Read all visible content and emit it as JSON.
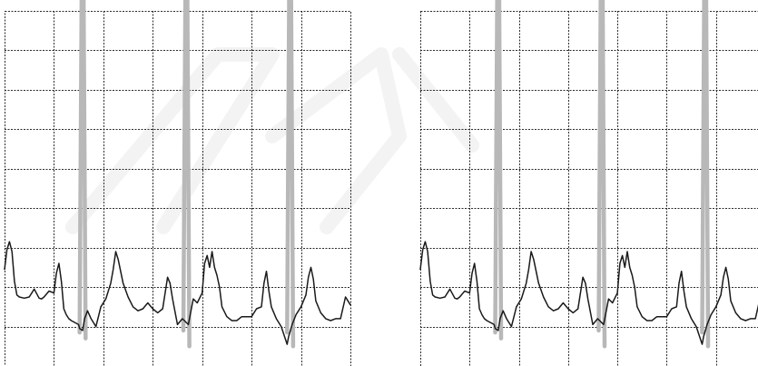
{
  "chart_data": [
    {
      "type": "line",
      "panel": "left",
      "title": "",
      "xlabel": "",
      "ylabel": "",
      "grid": true,
      "xlim": [
        0,
        7
      ],
      "ylim": [
        0,
        9
      ],
      "series": [
        {
          "color": "#1a1a1a",
          "x": [
            0,
            0.05,
            0.1,
            0.15,
            0.2,
            0.25,
            0.3,
            0.4,
            0.5,
            0.6,
            0.7,
            0.75,
            0.8,
            0.9,
            1.0,
            1.05,
            1.1,
            1.15,
            1.2,
            1.25,
            1.3,
            1.35,
            1.5,
            1.52,
            1.58,
            1.62,
            1.68,
            1.75,
            1.85,
            1.95,
            2.05,
            2.15,
            2.2,
            2.25,
            2.3,
            2.4,
            2.5,
            2.6,
            2.7,
            2.8,
            2.9,
            3.0,
            3.1,
            3.2,
            3.25,
            3.3,
            3.35,
            3.4,
            3.5,
            3.6,
            3.72,
            3.75,
            3.82,
            3.9,
            4.0,
            4.05,
            4.1,
            4.15,
            4.2,
            4.25,
            4.3,
            4.35,
            4.4,
            4.5,
            4.6,
            4.7,
            4.8,
            5.0,
            5.1,
            5.2,
            5.25,
            5.3,
            5.35,
            5.4,
            5.5,
            5.6,
            5.72,
            5.75,
            5.82,
            5.9,
            6.0,
            6.1,
            6.15,
            6.2,
            6.25,
            6.3,
            6.4,
            6.5,
            6.6,
            6.7,
            6.8,
            6.9,
            7.0
          ],
          "y": [
            2.45,
            2.95,
            3.15,
            2.9,
            2.15,
            1.8,
            1.75,
            1.72,
            1.75,
            1.95,
            1.72,
            1.7,
            1.75,
            1.9,
            1.85,
            2.35,
            2.6,
            2.15,
            1.45,
            1.3,
            1.2,
            1.15,
            1.05,
            0.95,
            0.9,
            1.2,
            1.4,
            1.2,
            1.0,
            1.5,
            1.7,
            2.1,
            2.45,
            2.9,
            2.7,
            2.1,
            1.75,
            1.5,
            1.4,
            1.45,
            1.6,
            1.45,
            1.35,
            1.45,
            1.85,
            2.25,
            2.1,
            1.7,
            1.05,
            1.2,
            1.05,
            1.25,
            1.7,
            1.6,
            1.85,
            2.6,
            2.8,
            2.5,
            2.9,
            2.5,
            2.3,
            2.0,
            1.5,
            1.25,
            1.15,
            1.15,
            1.25,
            1.25,
            1.45,
            1.5,
            2.1,
            2.4,
            1.9,
            1.5,
            1.2,
            1.0,
            0.55,
            0.75,
            1.05,
            1.3,
            1.5,
            1.8,
            2.25,
            2.5,
            2.2,
            1.65,
            1.35,
            1.2,
            1.15,
            1.2,
            1.2,
            1.75,
            1.55
          ]
        }
      ]
    },
    {
      "type": "line",
      "panel": "right",
      "title": "",
      "xlabel": "",
      "ylabel": "",
      "grid": true,
      "xlim": [
        0,
        7
      ],
      "ylim": [
        0,
        9
      ],
      "series": [
        {
          "color": "#1a1a1a",
          "x": [
            0,
            0.05,
            0.1,
            0.15,
            0.2,
            0.25,
            0.3,
            0.4,
            0.5,
            0.6,
            0.7,
            0.75,
            0.8,
            0.9,
            1.0,
            1.05,
            1.1,
            1.15,
            1.2,
            1.25,
            1.3,
            1.35,
            1.5,
            1.52,
            1.58,
            1.62,
            1.68,
            1.75,
            1.85,
            1.95,
            2.05,
            2.15,
            2.2,
            2.25,
            2.3,
            2.4,
            2.5,
            2.6,
            2.7,
            2.8,
            2.9,
            3.0,
            3.1,
            3.2,
            3.25,
            3.3,
            3.35,
            3.4,
            3.5,
            3.6,
            3.72,
            3.75,
            3.82,
            3.9,
            4.0,
            4.05,
            4.1,
            4.15,
            4.2,
            4.25,
            4.3,
            4.35,
            4.4,
            4.5,
            4.6,
            4.7,
            4.8,
            5.0,
            5.1,
            5.2,
            5.25,
            5.3,
            5.35,
            5.4,
            5.5,
            5.6,
            5.72,
            5.75,
            5.82,
            5.9,
            6.0,
            6.1,
            6.15,
            6.2,
            6.25,
            6.3,
            6.4,
            6.5,
            6.6,
            6.7,
            6.8,
            6.9,
            7.0
          ],
          "y": [
            2.45,
            2.95,
            3.15,
            2.9,
            2.15,
            1.8,
            1.75,
            1.72,
            1.75,
            1.95,
            1.72,
            1.7,
            1.75,
            1.9,
            1.85,
            2.35,
            2.6,
            2.15,
            1.45,
            1.3,
            1.2,
            1.15,
            1.05,
            0.95,
            0.9,
            1.2,
            1.4,
            1.2,
            1.0,
            1.5,
            1.7,
            2.1,
            2.45,
            2.9,
            2.7,
            2.1,
            1.75,
            1.5,
            1.4,
            1.45,
            1.6,
            1.45,
            1.35,
            1.45,
            1.85,
            2.25,
            2.1,
            1.7,
            1.05,
            1.2,
            1.05,
            1.25,
            1.7,
            1.6,
            1.85,
            2.6,
            2.8,
            2.5,
            2.9,
            2.5,
            2.3,
            2.0,
            1.5,
            1.25,
            1.15,
            1.15,
            1.25,
            1.25,
            1.45,
            1.5,
            2.1,
            2.4,
            1.9,
            1.5,
            1.2,
            1.0,
            0.55,
            0.75,
            1.05,
            1.3,
            1.5,
            1.8,
            2.25,
            2.5,
            2.2,
            1.65,
            1.35,
            1.2,
            1.15,
            1.2,
            1.2,
            1.75,
            1.55
          ]
        },
        {
          "color": "#b8b8b8",
          "x": [
            0,
            7
          ],
          "y": [
            0,
            0
          ]
        }
      ]
    }
  ],
  "spike_marks": [
    {
      "color": "#b8b8b8",
      "x": [
        1.52,
        1.56,
        1.6,
        1.64
      ],
      "y": [
        0.85,
        9.3,
        9.3,
        0.7
      ]
    },
    {
      "color": "#b8b8b8",
      "x": [
        3.62,
        3.66,
        3.7,
        3.74
      ],
      "y": [
        0.9,
        9.3,
        9.3,
        0.5
      ]
    },
    {
      "color": "#b8b8b8",
      "x": [
        5.72,
        5.76,
        5.8,
        5.84
      ],
      "y": [
        0.85,
        9.3,
        9.3,
        0.5
      ]
    }
  ]
}
